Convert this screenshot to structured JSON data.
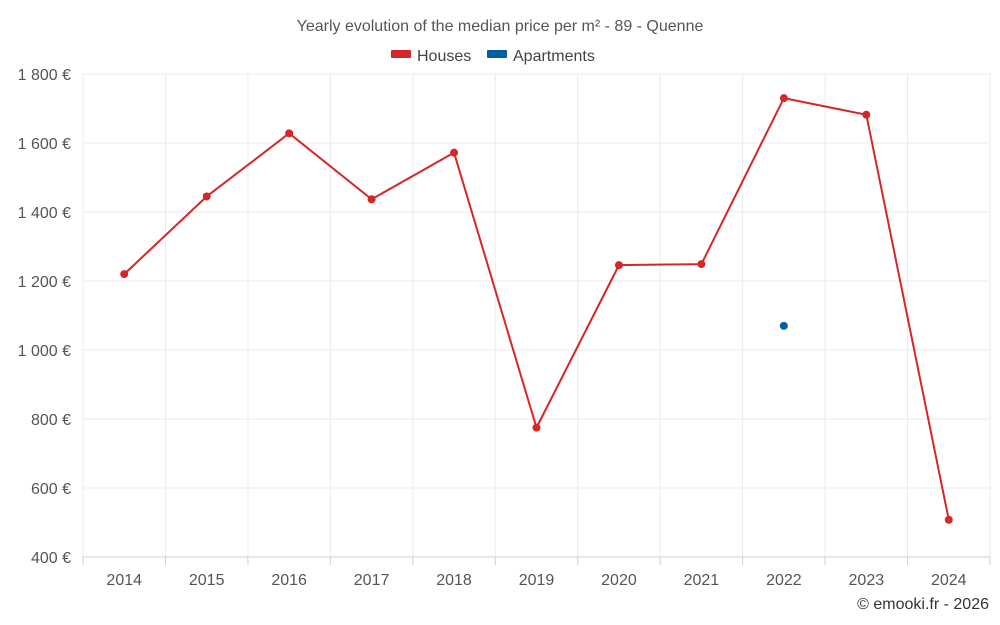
{
  "chart_data": {
    "type": "line",
    "title": "Yearly evolution of the median price per m² - 89 - Quenne",
    "xlabel": "",
    "ylabel": "",
    "categories": [
      "2014",
      "2015",
      "2016",
      "2017",
      "2018",
      "2019",
      "2020",
      "2021",
      "2022",
      "2023",
      "2024"
    ],
    "ylim": [
      400,
      1800
    ],
    "yticks": [
      400,
      600,
      800,
      1000,
      1200,
      1400,
      1600,
      1800
    ],
    "ytick_labels": [
      "400 €",
      "600 €",
      "800 €",
      "1 000 €",
      "1 200 €",
      "1 400 €",
      "1 600 €",
      "1 800 €"
    ],
    "grid": true,
    "legend_position": "top-center",
    "series": [
      {
        "name": "Houses",
        "color": "#d62728",
        "values": [
          1220,
          1445,
          1628,
          1437,
          1572,
          775,
          1246,
          1249,
          1730,
          1682,
          508
        ]
      },
      {
        "name": "Apartments",
        "color": "#005f9e",
        "values": [
          null,
          null,
          null,
          null,
          null,
          null,
          null,
          null,
          1070,
          null,
          null
        ]
      }
    ]
  },
  "credit": "© emooki.fr - 2026"
}
